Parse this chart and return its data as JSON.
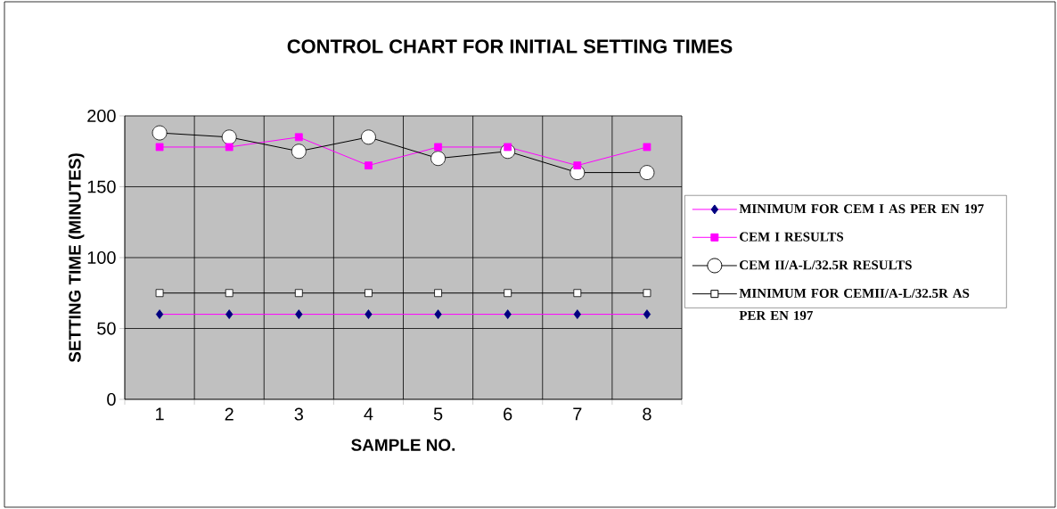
{
  "chart_data": {
    "type": "line",
    "title": "CONTROL CHART FOR INITIAL SETTING TIMES",
    "xlabel": "SAMPLE NO.",
    "ylabel": "SETTING TIME (MINUTES)",
    "categories": [
      "1",
      "2",
      "3",
      "4",
      "5",
      "6",
      "7",
      "8"
    ],
    "series": [
      {
        "name": "MINIMUM FOR CEM I AS PER EN 197",
        "color": "#ff00ff",
        "colors": [
          "#000080",
          "#000080",
          "#000080",
          "#000080",
          "#000080",
          "#000080",
          "#000080",
          "#000080"
        ],
        "marker": "diamond",
        "values": [
          60,
          60,
          60,
          60,
          60,
          60,
          60,
          60
        ]
      },
      {
        "name": "CEM I  RESULTS",
        "color": "#ff00ff",
        "marker": "square",
        "values": [
          178,
          178,
          185,
          165,
          178,
          178,
          165,
          178
        ]
      },
      {
        "name": "CEM II/A-L/32.5R RESULTS",
        "color": "#000000",
        "colors": [
          "#ffffff",
          "#ffffff",
          "#ffffff",
          "#ffffff",
          "#ffffff",
          "#ffffff",
          "#ffffff",
          "#ffffff"
        ],
        "marker": "circle",
        "values": [
          188,
          185,
          175,
          185,
          170,
          175,
          160,
          160
        ]
      },
      {
        "name": "MINIMUM FOR CEMII/A-L/32.5R AS PER EN 197",
        "color": "#000000",
        "colors": [
          "#ffffff",
          "#ffffff",
          "#ffffff",
          "#ffffff",
          "#ffffff",
          "#ffffff",
          "#ffffff",
          "#ffffff"
        ],
        "marker": "square",
        "values": [
          75,
          75,
          75,
          75,
          75,
          75,
          75,
          75
        ]
      }
    ],
    "ylim": [
      0,
      200
    ],
    "yticks": [
      0,
      50,
      100,
      150,
      200
    ],
    "grid": true,
    "legend": "right"
  }
}
